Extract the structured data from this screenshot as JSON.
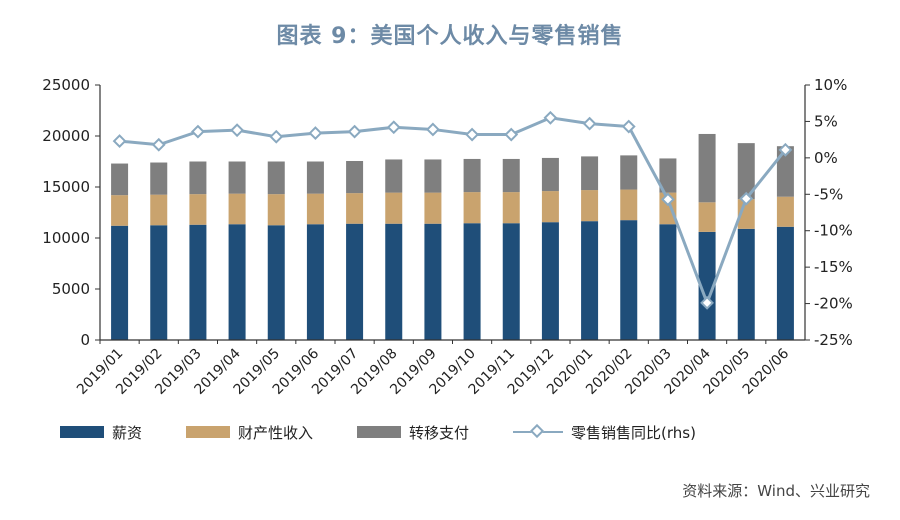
{
  "title": "图表 9：美国个人收入与零售销售",
  "source": "资料来源：Wind、兴业研究",
  "colors": {
    "wages": "#1f4e79",
    "property": "#c9a36e",
    "transfer": "#7f7f7f",
    "retail": "#8aa9c0",
    "title": "#6d8aa6"
  },
  "chart_data": {
    "type": "bar",
    "stacked": true,
    "categories": [
      "2019/01",
      "2019/02",
      "2019/03",
      "2019/04",
      "2019/05",
      "2019/06",
      "2019/07",
      "2019/08",
      "2019/09",
      "2019/10",
      "2019/11",
      "2019/12",
      "2020/01",
      "2020/02",
      "2020/03",
      "2020/04",
      "2020/05",
      "2020/06"
    ],
    "left_axis": {
      "ylim": [
        0,
        25000
      ],
      "ticks": [
        "0",
        "5000",
        "10000",
        "15000",
        "20000",
        "25000"
      ]
    },
    "right_axis": {
      "ylim": [
        -25,
        10
      ],
      "ticks": [
        "-25%",
        "-20%",
        "-15%",
        "-10%",
        "-5%",
        "0%",
        "5%",
        "10%"
      ]
    },
    "series": [
      {
        "name": "薪资",
        "axis": "left",
        "values": [
          11200,
          11250,
          11300,
          11350,
          11250,
          11350,
          11400,
          11400,
          11400,
          11450,
          11450,
          11550,
          11650,
          11750,
          11350,
          10600,
          10900,
          11100
        ]
      },
      {
        "name": "财产性收入",
        "axis": "left",
        "values": [
          3000,
          3000,
          3000,
          3000,
          3050,
          3000,
          3000,
          3050,
          3050,
          3050,
          3050,
          3050,
          3050,
          3000,
          3100,
          2900,
          2900,
          2950
        ]
      },
      {
        "name": "转移支付",
        "axis": "left",
        "values": [
          3100,
          3150,
          3200,
          3150,
          3200,
          3150,
          3150,
          3250,
          3250,
          3250,
          3250,
          3250,
          3300,
          3350,
          3350,
          6700,
          5500,
          4950
        ]
      },
      {
        "name": "零售销售同比(rhs)",
        "axis": "right",
        "type": "line",
        "values": [
          2.3,
          1.8,
          3.6,
          3.8,
          2.9,
          3.4,
          3.6,
          4.2,
          3.9,
          3.2,
          3.2,
          5.5,
          4.7,
          4.3,
          -5.7,
          -19.9,
          -5.6,
          1.1
        ]
      }
    ]
  }
}
